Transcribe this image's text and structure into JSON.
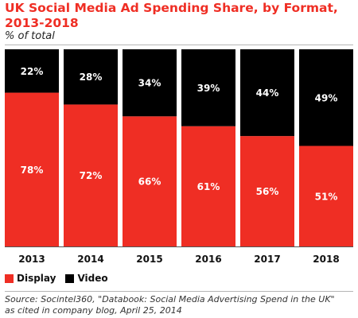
{
  "chart_data": {
    "type": "bar",
    "stacked": true,
    "title": "UK Social Media Ad Spending Share, by Format, 2013-2018",
    "subtitle": "% of total",
    "categories": [
      "2013",
      "2014",
      "2015",
      "2016",
      "2017",
      "2018"
    ],
    "series": [
      {
        "name": "Display",
        "color": "#ef2e24",
        "values": [
          78,
          72,
          66,
          61,
          56,
          51
        ]
      },
      {
        "name": "Video",
        "color": "#000000",
        "values": [
          22,
          28,
          34,
          39,
          44,
          49
        ]
      }
    ],
    "value_suffix": "%",
    "ylim": [
      0,
      100
    ],
    "legend_position": "bottom-left",
    "grid": false
  },
  "source": {
    "line1": "Source: Socintel360, \"Databook: Social Media Advertising Spend in the UK\"",
    "line2": "as cited in company blog, April 25, 2014"
  }
}
